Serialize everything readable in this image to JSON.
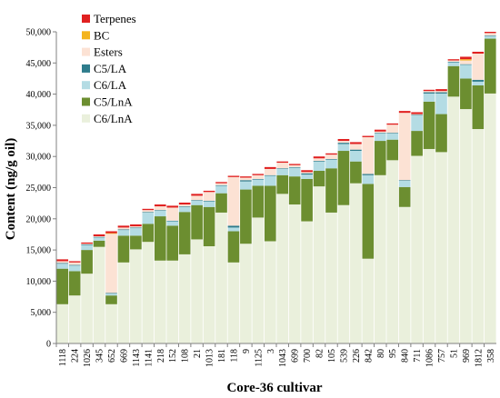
{
  "chart_data": {
    "type": "bar",
    "stacked": true,
    "xlabel": "Core-36 cultivar",
    "ylabel": "Content (ng/g oil)",
    "ylim": [
      0,
      50000
    ],
    "yticks": [
      0,
      5000,
      10000,
      15000,
      20000,
      25000,
      30000,
      35000,
      40000,
      45000,
      50000
    ],
    "ytick_labels": [
      "0",
      "5,000",
      "10,000",
      "15,000",
      "20,000",
      "25,000",
      "30,000",
      "35,000",
      "40,000",
      "45,000",
      "50,000"
    ],
    "grid": false,
    "legend_position": "top-left",
    "categories": [
      "1118",
      "224",
      "1026",
      "345",
      "652",
      "669",
      "1143",
      "1141",
      "218",
      "152",
      "108",
      "21",
      "1013",
      "181",
      "118",
      "9",
      "1125",
      "3",
      "1043",
      "699",
      "700",
      "82",
      "105",
      "539",
      "226",
      "842",
      "80",
      "95",
      "840",
      "711",
      "1086",
      "757",
      "51",
      "969",
      "1812",
      "358"
    ],
    "series": [
      {
        "name": "C6/LnA",
        "color": "#EAF0DC",
        "values": [
          6300,
          7700,
          11200,
          15500,
          6300,
          13000,
          15100,
          16300,
          13300,
          13300,
          14300,
          16700,
          15600,
          21000,
          13000,
          16000,
          20200,
          16400,
          24000,
          22300,
          19600,
          25200,
          21000,
          22200,
          25700,
          13600,
          27000,
          29400,
          21900,
          30100,
          31200,
          30700,
          39600,
          37600,
          34400,
          40100
        ]
      },
      {
        "name": "C5/LnA",
        "color": "#6C8E30",
        "values": [
          5700,
          3900,
          3800,
          1000,
          1400,
          4300,
          2200,
          2900,
          7100,
          5600,
          6800,
          5500,
          6300,
          3100,
          5000,
          8700,
          5100,
          8900,
          3000,
          4500,
          6800,
          2500,
          7100,
          8700,
          3500,
          12000,
          5500,
          3300,
          3200,
          4000,
          7600,
          6100,
          4900,
          4900,
          7000,
          8800
        ]
      },
      {
        "name": "C6/LA",
        "color": "#B4DCE4",
        "values": [
          800,
          900,
          800,
          500,
          300,
          900,
          1200,
          1800,
          900,
          700,
          800,
          700,
          900,
          1200,
          600,
          1300,
          1000,
          1600,
          1000,
          1400,
          700,
          1500,
          1400,
          1100,
          1700,
          1400,
          1200,
          1000,
          1000,
          2500,
          1300,
          3300,
          600,
          2200,
          600,
          400
        ]
      },
      {
        "name": "C5/LA",
        "color": "#2E7C8C",
        "values": [
          100,
          100,
          100,
          100,
          100,
          100,
          100,
          100,
          100,
          100,
          100,
          100,
          100,
          100,
          300,
          200,
          100,
          100,
          100,
          100,
          200,
          100,
          100,
          200,
          200,
          200,
          100,
          100,
          100,
          100,
          200,
          200,
          100,
          100,
          300,
          100
        ]
      },
      {
        "name": "Esters",
        "color": "#FCE2D4",
        "values": [
          300,
          400,
          100,
          100,
          9500,
          300,
          200,
          300,
          600,
          2100,
          300,
          700,
          1400,
          300,
          7800,
          400,
          600,
          1000,
          900,
          300,
          200,
          400,
          700,
          300,
          900,
          5900,
          200,
          1300,
          10800,
          100,
          200,
          200,
          200,
          600,
          4200,
          400
        ]
      },
      {
        "name": "BC",
        "color": "#F4B41C",
        "values": [
          0,
          0,
          0,
          0,
          100,
          0,
          0,
          0,
          0,
          0,
          0,
          0,
          0,
          0,
          0,
          0,
          0,
          0,
          0,
          0,
          0,
          0,
          0,
          0,
          0,
          0,
          0,
          0,
          0,
          0,
          0,
          0,
          0,
          200,
          0,
          0
        ]
      },
      {
        "name": "Terpenes",
        "color": "#E02020",
        "values": [
          300,
          200,
          200,
          300,
          300,
          300,
          300,
          200,
          300,
          300,
          300,
          300,
          200,
          200,
          200,
          200,
          200,
          300,
          200,
          200,
          300,
          300,
          200,
          300,
          300,
          200,
          300,
          200,
          300,
          300,
          200,
          300,
          200,
          400,
          300,
          200
        ]
      }
    ]
  }
}
